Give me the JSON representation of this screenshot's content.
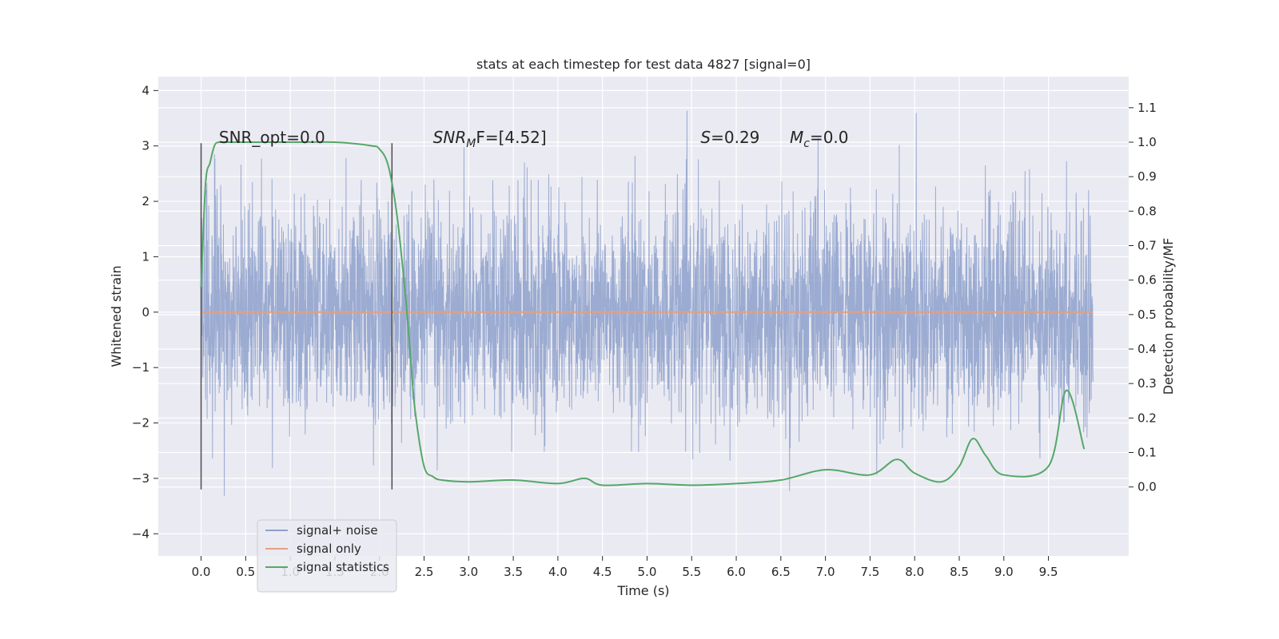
{
  "chart_data": {
    "type": "line",
    "title": "stats at each timestep for test data 4827 [signal=0]",
    "xlabel": "Time (s)",
    "ylabel": "Whitened strain",
    "y2label": "Detection probability/MF",
    "xlim": [
      -0.48,
      10.4
    ],
    "ylim": [
      -4.4,
      4.25
    ],
    "y2lim": [
      -0.2,
      1.19
    ],
    "xticks": [
      0.0,
      0.5,
      1.0,
      1.5,
      2.0,
      2.5,
      3.0,
      3.5,
      4.0,
      4.5,
      5.0,
      5.5,
      6.0,
      6.5,
      7.0,
      7.5,
      8.0,
      8.5,
      9.0,
      9.5
    ],
    "yticks": [
      -4,
      -3,
      -2,
      -1,
      0,
      1,
      2,
      3,
      4
    ],
    "y2ticks": [
      0.0,
      0.1,
      0.2,
      0.3,
      0.4,
      0.5,
      0.6,
      0.7,
      0.8,
      0.9,
      1.0,
      1.1
    ],
    "grid": true,
    "legend_location": "lower-left",
    "series": [
      {
        "name": "signal+ noise",
        "axis": "left",
        "color": "#8da0cb",
        "t_start": 0.0,
        "t_end": 10.0,
        "noise_std": 0.95
      },
      {
        "name": "signal only",
        "axis": "left",
        "color": "#e5a07f",
        "x": [
          0.0,
          10.0
        ],
        "y": [
          0.0,
          0.0
        ]
      },
      {
        "name": "signal statistics",
        "axis": "right",
        "color": "#55a868",
        "x": [
          0.0,
          0.05,
          0.1,
          0.15,
          0.2,
          0.3,
          0.5,
          1.0,
          1.5,
          1.9,
          2.0,
          2.1,
          2.2,
          2.3,
          2.35,
          2.4,
          2.5,
          2.6,
          2.7,
          3.0,
          3.5,
          4.0,
          4.3,
          4.5,
          5.0,
          5.5,
          6.0,
          6.5,
          7.0,
          7.5,
          7.8,
          8.0,
          8.3,
          8.5,
          8.65,
          8.8,
          9.0,
          9.5,
          9.7,
          9.9
        ],
        "y": [
          0.58,
          0.88,
          0.94,
          0.99,
          1.0,
          1.0,
          1.0,
          1.0,
          1.0,
          0.99,
          0.98,
          0.93,
          0.78,
          0.53,
          0.37,
          0.22,
          0.06,
          0.03,
          0.02,
          0.015,
          0.02,
          0.01,
          0.025,
          0.005,
          0.01,
          0.005,
          0.01,
          0.02,
          0.05,
          0.035,
          0.08,
          0.04,
          0.015,
          0.06,
          0.14,
          0.09,
          0.035,
          0.06,
          0.28,
          0.11
        ]
      }
    ],
    "vlines": [
      0.0,
      2.14
    ],
    "annotations": [
      {
        "x": 0.2,
        "y": 3.05,
        "text": "SNR_opt=0.0"
      },
      {
        "x": 2.6,
        "y": 3.05,
        "text_main": "SNR",
        "text_sub": "M",
        "text_rest": "F=[4.52]"
      },
      {
        "x": 5.6,
        "y": 3.05,
        "text_main": "S",
        "text_rest": "=0.29"
      },
      {
        "x": 6.6,
        "y": 3.05,
        "text_main": "M",
        "text_sub": "c",
        "text_rest": "=0.0"
      }
    ]
  }
}
